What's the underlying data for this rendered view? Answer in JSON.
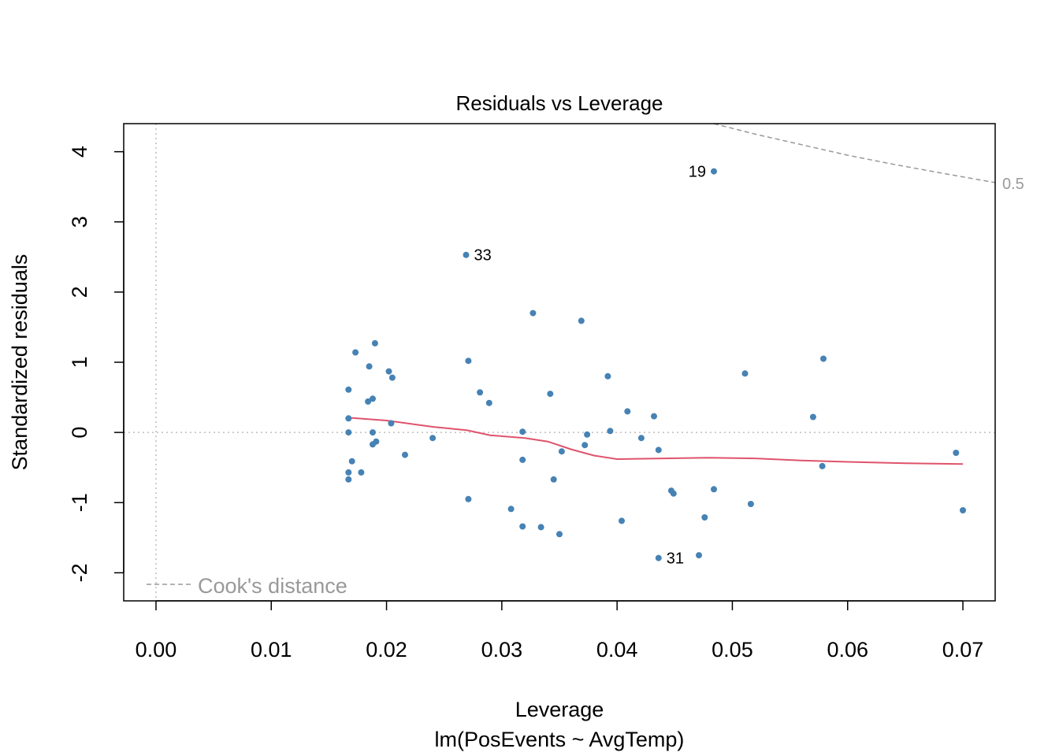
{
  "chart_data": {
    "type": "scatter",
    "title": "Residuals vs Leverage",
    "xlabel": "Leverage",
    "subtitle": "lm(PosEvents ~ AvgTemp)",
    "ylabel": "Standardized residuals",
    "xlim": [
      -0.0028,
      0.0728
    ],
    "ylim": [
      -2.4,
      4.4
    ],
    "xticks": [
      0.0,
      0.01,
      0.02,
      0.03,
      0.04,
      0.05,
      0.06,
      0.07
    ],
    "xtick_labels": [
      "0.00",
      "0.01",
      "0.02",
      "0.03",
      "0.04",
      "0.05",
      "0.06",
      "0.07"
    ],
    "yticks": [
      -2,
      -1,
      0,
      1,
      2,
      3,
      4
    ],
    "ytick_labels": [
      "-2",
      "-1",
      "0",
      "1",
      "2",
      "3",
      "4"
    ],
    "points": [
      {
        "x": 0.0484,
        "y": 3.72,
        "label": "19"
      },
      {
        "x": 0.0269,
        "y": 2.53,
        "label": "33"
      },
      {
        "x": 0.0436,
        "y": -1.79,
        "label": "31"
      },
      {
        "x": 0.0327,
        "y": 1.7
      },
      {
        "x": 0.0369,
        "y": 1.59
      },
      {
        "x": 0.019,
        "y": 1.27
      },
      {
        "x": 0.0173,
        "y": 1.14
      },
      {
        "x": 0.0271,
        "y": 1.02
      },
      {
        "x": 0.0579,
        "y": 1.05
      },
      {
        "x": 0.0185,
        "y": 0.94
      },
      {
        "x": 0.0202,
        "y": 0.87
      },
      {
        "x": 0.0511,
        "y": 0.84
      },
      {
        "x": 0.0392,
        "y": 0.8
      },
      {
        "x": 0.0205,
        "y": 0.78
      },
      {
        "x": 0.0167,
        "y": 0.61
      },
      {
        "x": 0.0281,
        "y": 0.57
      },
      {
        "x": 0.0342,
        "y": 0.55
      },
      {
        "x": 0.0188,
        "y": 0.48
      },
      {
        "x": 0.0184,
        "y": 0.44
      },
      {
        "x": 0.0289,
        "y": 0.42
      },
      {
        "x": 0.0409,
        "y": 0.3
      },
      {
        "x": 0.0432,
        "y": 0.23
      },
      {
        "x": 0.057,
        "y": 0.22
      },
      {
        "x": 0.0167,
        "y": 0.2
      },
      {
        "x": 0.0204,
        "y": 0.13
      },
      {
        "x": 0.0167,
        "y": 0.0
      },
      {
        "x": 0.0188,
        "y": 0.0
      },
      {
        "x": 0.0318,
        "y": 0.01
      },
      {
        "x": 0.0394,
        "y": 0.02
      },
      {
        "x": 0.0374,
        "y": -0.03
      },
      {
        "x": 0.024,
        "y": -0.08
      },
      {
        "x": 0.0421,
        "y": -0.08
      },
      {
        "x": 0.0191,
        "y": -0.13
      },
      {
        "x": 0.0188,
        "y": -0.17
      },
      {
        "x": 0.0372,
        "y": -0.18
      },
      {
        "x": 0.0436,
        "y": -0.25
      },
      {
        "x": 0.0352,
        "y": -0.27
      },
      {
        "x": 0.0216,
        "y": -0.32
      },
      {
        "x": 0.0318,
        "y": -0.39
      },
      {
        "x": 0.017,
        "y": -0.41
      },
      {
        "x": 0.0578,
        "y": -0.48
      },
      {
        "x": 0.0694,
        "y": -0.29
      },
      {
        "x": 0.0178,
        "y": -0.57
      },
      {
        "x": 0.0167,
        "y": -0.57
      },
      {
        "x": 0.0167,
        "y": -0.67
      },
      {
        "x": 0.0345,
        "y": -0.67
      },
      {
        "x": 0.0484,
        "y": -0.81
      },
      {
        "x": 0.0447,
        "y": -0.83
      },
      {
        "x": 0.0449,
        "y": -0.87
      },
      {
        "x": 0.0271,
        "y": -0.95
      },
      {
        "x": 0.0516,
        "y": -1.02
      },
      {
        "x": 0.0308,
        "y": -1.09
      },
      {
        "x": 0.07,
        "y": -1.11
      },
      {
        "x": 0.0476,
        "y": -1.21
      },
      {
        "x": 0.0404,
        "y": -1.26
      },
      {
        "x": 0.0318,
        "y": -1.34
      },
      {
        "x": 0.0334,
        "y": -1.35
      },
      {
        "x": 0.035,
        "y": -1.45
      },
      {
        "x": 0.0471,
        "y": -1.75
      }
    ],
    "smooth_line": {
      "x": [
        0.0167,
        0.02,
        0.024,
        0.027,
        0.029,
        0.032,
        0.034,
        0.036,
        0.038,
        0.04,
        0.044,
        0.048,
        0.052,
        0.056,
        0.06,
        0.065,
        0.07
      ],
      "y": [
        0.21,
        0.17,
        0.08,
        0.03,
        -0.04,
        -0.08,
        -0.13,
        -0.24,
        -0.33,
        -0.38,
        -0.37,
        -0.36,
        -0.37,
        -0.4,
        -0.42,
        -0.44,
        -0.45
      ],
      "color": "#DF536B"
    },
    "cooks_contour": {
      "level_label": "0.5",
      "x": [
        0.0484,
        0.052,
        0.056,
        0.06,
        0.064,
        0.068,
        0.0728
      ],
      "y": [
        4.4,
        4.25,
        4.1,
        3.95,
        3.82,
        3.7,
        3.56
      ],
      "color": "#999999"
    },
    "reference_lines": {
      "h": 0,
      "v": 0,
      "color": "#BEBEBE"
    },
    "legend": {
      "label": "Cook's distance",
      "position": "bottom-left",
      "color": "#999999"
    },
    "point_color": "#4682B4"
  }
}
